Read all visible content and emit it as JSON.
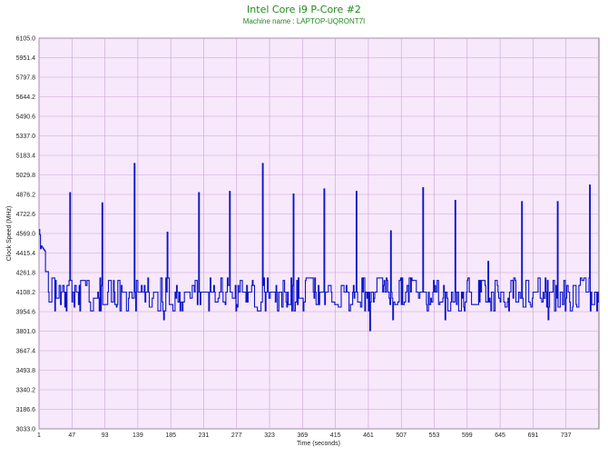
{
  "chart_data": {
    "type": "line",
    "title": "Intel Core i9 P-Core #2",
    "subtitle": "Machine name : LAPTOP-UQRONT7I",
    "xlabel": "Time (seconds)",
    "ylabel": "Clock Speed (MHz)",
    "xlim": [
      1,
      783
    ],
    "ylim": [
      3033.0,
      6105.0
    ],
    "x_ticks": [
      "1",
      "47",
      "93",
      "139",
      "185",
      "231",
      "277",
      "323",
      "369",
      "415",
      "461",
      "507",
      "553",
      "599",
      "645",
      "691",
      "737"
    ],
    "y_ticks": [
      "6105.0",
      "5951.4",
      "5797.8",
      "5644.2",
      "5490.6",
      "5337.0",
      "5183.4",
      "5029.8",
      "4876.2",
      "4722.6",
      "4569.0",
      "4415.4",
      "4261.8",
      "4108.2",
      "3954.6",
      "3801.0",
      "3647.4",
      "3493.8",
      "3340.2",
      "3186.6",
      "3033.0"
    ],
    "grid": true,
    "colors": {
      "plot_background": "#f7e8fb",
      "grid": "#c9a3d4",
      "line": "#0b14c8",
      "title": "#1e8a1e"
    },
    "series": [
      {
        "baseline": 4108.2,
        "spikes": [
          {
            "x": 1,
            "y": 4600
          },
          {
            "x": 2,
            "y": 4560
          },
          {
            "x": 3,
            "y": 4450
          },
          {
            "x": 44,
            "y": 4890
          },
          {
            "x": 89,
            "y": 4810
          },
          {
            "x": 134,
            "y": 5120
          },
          {
            "x": 180,
            "y": 4580
          },
          {
            "x": 224,
            "y": 4890
          },
          {
            "x": 267,
            "y": 4900
          },
          {
            "x": 313,
            "y": 5120
          },
          {
            "x": 356,
            "y": 4880
          },
          {
            "x": 399,
            "y": 4920
          },
          {
            "x": 444,
            "y": 4900
          },
          {
            "x": 492,
            "y": 4590
          },
          {
            "x": 537,
            "y": 4930
          },
          {
            "x": 582,
            "y": 4830
          },
          {
            "x": 628,
            "y": 4350
          },
          {
            "x": 675,
            "y": 4820
          },
          {
            "x": 725,
            "y": 4820
          },
          {
            "x": 770,
            "y": 4950
          }
        ],
        "dips": [
          {
            "x": 175,
            "y": 3890
          },
          {
            "x": 463,
            "y": 3805
          },
          {
            "x": 495,
            "y": 3890
          },
          {
            "x": 568,
            "y": 3890
          },
          {
            "x": 712,
            "y": 3890
          }
        ]
      }
    ]
  }
}
